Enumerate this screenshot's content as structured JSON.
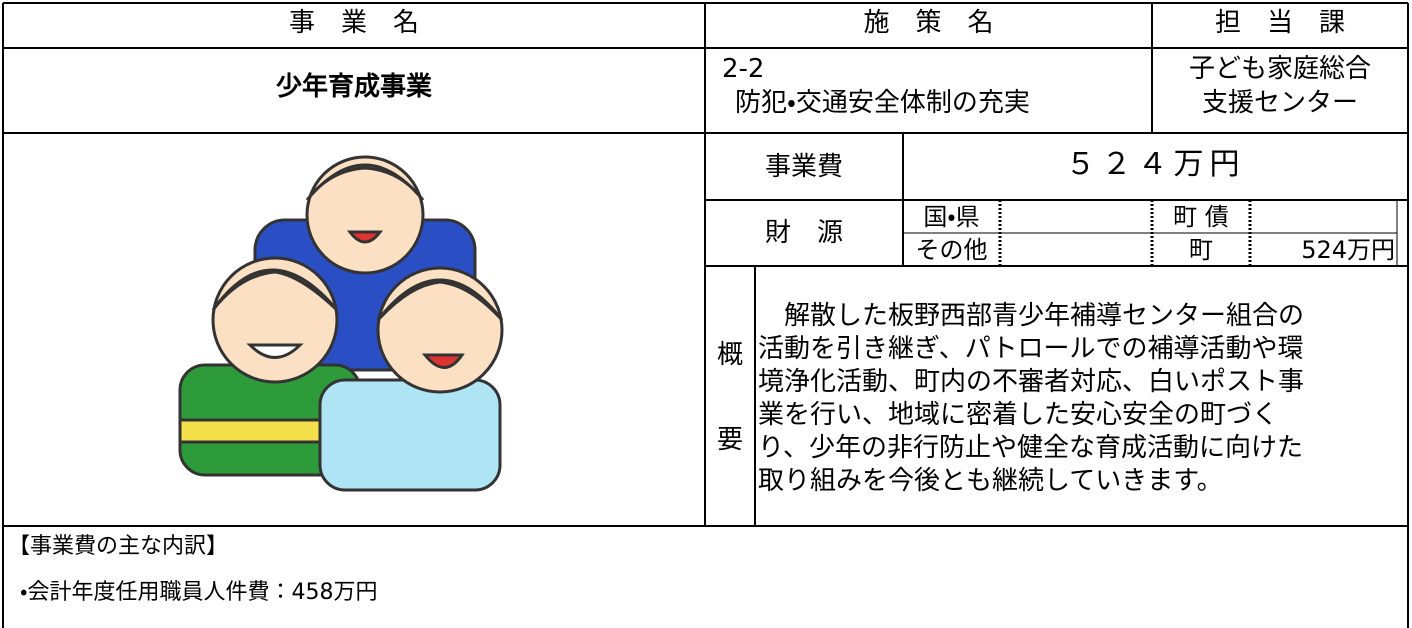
{
  "header": {
    "project_label": "事　業　名",
    "policy_label": "施　策　名",
    "dept_label": "担　当　課"
  },
  "project_name": "少年育成事業",
  "policy": {
    "code": "2-2",
    "name": "防犯・交通安全体制の充実"
  },
  "department": [
    "子ども家庭総合",
    "支援センター"
  ],
  "cost": {
    "label": "事業費",
    "value": "５２４万円"
  },
  "funding": {
    "label": "財　源",
    "national_pref_label": "国・県",
    "other_label": "その他",
    "bond_label": "町 債",
    "town_label": "町",
    "town_value": "524万円"
  },
  "summary": {
    "label": [
      "概",
      "要"
    ],
    "lines": [
      "　解散した板野西部青少年補導センター組合の",
      "活動を引き継ぎ、パトロールでの補導活動や環",
      "境浄化活動、町内の不審者対応、白いポスト事",
      "業を行い、地域に密着した安心安全の町づく",
      "り、少年の非行防止や健全な育成活動に向けた",
      "取り組みを今後とも継続していきます。"
    ]
  },
  "breakdown": {
    "title": "【事業費の主な内訳】",
    "items": [
      "・会計年度任用職員人件費：458万円"
    ]
  }
}
